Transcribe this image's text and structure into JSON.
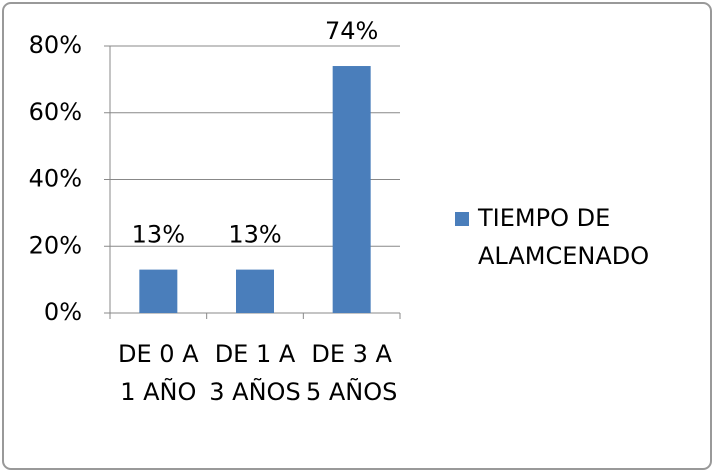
{
  "chart_data": {
    "type": "bar",
    "categories": [
      "DE 0 A 1 AÑO",
      "DE 1 A 3 AÑOS",
      "DE 3 A 5 AÑOS"
    ],
    "series": [
      {
        "name": "TIEMPO DE ALAMCENADO",
        "color": "#4a7ebb",
        "values": [
          13,
          13,
          74
        ],
        "value_labels": [
          "13%",
          "13%",
          "74%"
        ]
      }
    ],
    "ylim": [
      0,
      80
    ],
    "yticks": [
      {
        "value": 0,
        "label": "0%"
      },
      {
        "value": 20,
        "label": "20%"
      },
      {
        "value": 40,
        "label": "40%"
      },
      {
        "value": 60,
        "label": "60%"
      },
      {
        "value": 80,
        "label": "80%"
      }
    ],
    "grid": true,
    "legend": "right"
  }
}
